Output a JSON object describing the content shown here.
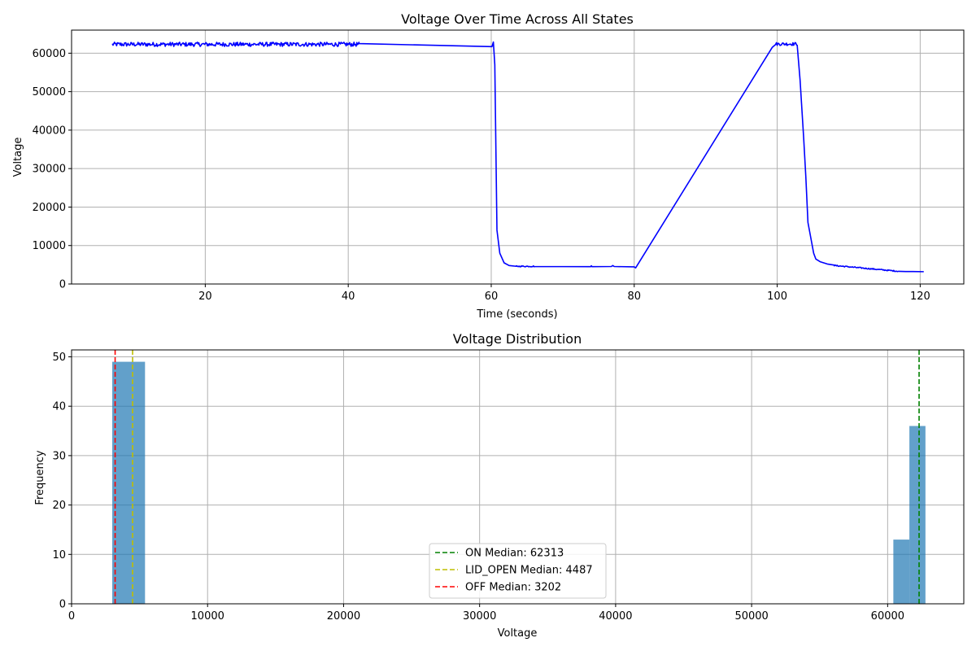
{
  "chart_data": [
    {
      "type": "line",
      "title": "Voltage Over Time Across All States",
      "xlabel": "Time (seconds)",
      "ylabel": "Voltage",
      "xlim": [
        1.3,
        126.1
      ],
      "ylim": [
        0,
        66000
      ],
      "xticks": [
        20,
        40,
        60,
        80,
        100,
        120
      ],
      "yticks": [
        0,
        10000,
        20000,
        30000,
        40000,
        50000,
        60000
      ],
      "grid": true,
      "color": "#0000ff",
      "series": [
        {
          "segments": [
            {
              "t_start": 7.0,
              "t_end": 41.5,
              "mean": 62300,
              "amplitude": 550,
              "step": 0.1
            },
            {
              "points": [
                [
                  41.5,
                  62500
                ],
                [
                  60.1,
                  61700
                ],
                [
                  60.3,
                  62900
                ],
                [
                  60.5,
                  57000
                ],
                [
                  60.8,
                  14000
                ],
                [
                  61.2,
                  8000
                ],
                [
                  61.8,
                  5500
                ],
                [
                  62.5,
                  4800
                ],
                [
                  63.5,
                  4600
                ]
              ]
            },
            {
              "t_start": 63.5,
              "t_end": 66.0,
              "mean": 4600,
              "amplitude": 150,
              "step": 0.1
            },
            {
              "points": [
                [
                  66.0,
                  4550
                ],
                [
                  73.9,
                  4500
                ],
                [
                  74.0,
                  4750
                ],
                [
                  74.1,
                  4500
                ],
                [
                  76.8,
                  4550
                ],
                [
                  77.0,
                  4800
                ],
                [
                  77.2,
                  4550
                ],
                [
                  80.0,
                  4450
                ],
                [
                  80.2,
                  4200
                ],
                [
                  99.3,
                  61500
                ],
                [
                  99.8,
                  62300
                ]
              ]
            },
            {
              "t_start": 99.8,
              "t_end": 102.8,
              "mean": 62400,
              "amplitude": 400,
              "step": 0.1
            },
            {
              "points": [
                [
                  102.8,
                  62000
                ],
                [
                  103.2,
                  53000
                ],
                [
                  103.7,
                  38000
                ],
                [
                  104.0,
                  28000
                ],
                [
                  104.3,
                  16000
                ],
                [
                  104.7,
                  12000
                ],
                [
                  105.1,
                  8000
                ],
                [
                  105.4,
                  6500
                ],
                [
                  106.0,
                  5800
                ],
                [
                  107.0,
                  5200
                ],
                [
                  108.0,
                  4900
                ]
              ]
            },
            {
              "t_start": 108.0,
              "t_end": 117.0,
              "mean_start": 4800,
              "mean_end": 3300,
              "amplitude": 150,
              "step": 0.1
            },
            {
              "points": [
                [
                  117.0,
                  3300
                ],
                [
                  118.0,
                  3250
                ],
                [
                  119.0,
                  3250
                ],
                [
                  120.5,
                  3200
                ]
              ]
            }
          ]
        }
      ]
    },
    {
      "type": "bar",
      "title": "Voltage Distribution",
      "xlabel": "Voltage",
      "ylabel": "Frequency",
      "xlim": [
        0,
        65600
      ],
      "ylim": [
        0,
        51.4
      ],
      "xticks": [
        0,
        10000,
        20000,
        30000,
        40000,
        50000,
        60000
      ],
      "yticks": [
        0,
        10,
        20,
        30,
        40,
        50
      ],
      "grid": true,
      "bar_color": "#1f77b4",
      "bar_alpha": 0.7,
      "bins": [
        {
          "x0": 2990,
          "x1": 5400,
          "count": 49
        },
        {
          "x0": 60420,
          "x1": 61600,
          "count": 13
        },
        {
          "x0": 61600,
          "x1": 62780,
          "count": 36
        }
      ],
      "medians": [
        {
          "label": "ON Median: 62313",
          "value": 62313,
          "color": "#008000"
        },
        {
          "label": "LID_OPEN Median: 4487",
          "value": 4487,
          "color": "#bfbf00"
        },
        {
          "label": "OFF Median: 3202",
          "value": 3202,
          "color": "#ff0000"
        }
      ],
      "legend_position": "lower-center"
    }
  ]
}
